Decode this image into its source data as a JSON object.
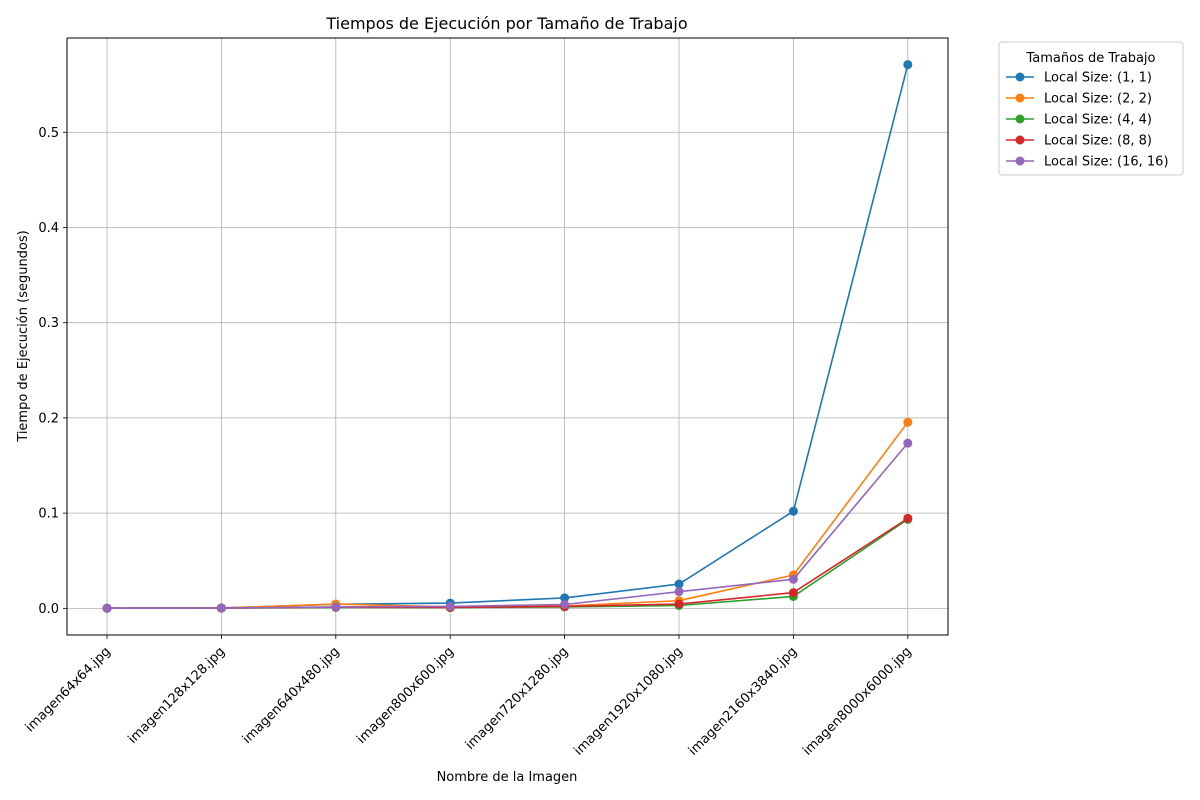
{
  "chart_data": {
    "type": "line",
    "title": "Tiempos de Ejecución por Tamaño de Trabajo",
    "xlabel": "Nombre de la Imagen",
    "ylabel": "Tiempo de Ejecución (segundos)",
    "categories": [
      "imagen64x64.jpg",
      "imagen128x128.jpg",
      "imagen640x480.jpg",
      "imagen800x600.jpg",
      "imagen720x1280.jpg",
      "imagen1920x1080.jpg",
      "imagen2160x3840.jpg",
      "imagen8000x6000.jpg"
    ],
    "ylim": [
      -0.028,
      0.599
    ],
    "yticks": [
      0.0,
      0.1,
      0.2,
      0.3,
      0.4,
      0.5
    ],
    "ytick_labels": [
      "0.0",
      "0.1",
      "0.2",
      "0.3",
      "0.4",
      "0.5"
    ],
    "grid": true,
    "legend_title": "Tamaños de Trabajo",
    "legend_position": "outside-top-right",
    "series": [
      {
        "name": "Local Size: (1, 1)",
        "color": "#1f77b4",
        "values": [
          0.0002,
          0.0005,
          0.0042,
          0.0055,
          0.011,
          0.0255,
          0.102,
          0.571
        ]
      },
      {
        "name": "Local Size: (2, 2)",
        "color": "#ff7f0e",
        "values": [
          0.0001,
          0.0003,
          0.0045,
          0.0015,
          0.0025,
          0.008,
          0.035,
          0.1955
        ]
      },
      {
        "name": "Local Size: (4, 4)",
        "color": "#2ca02c",
        "values": [
          0.0001,
          0.0002,
          0.001,
          0.0008,
          0.0015,
          0.003,
          0.0125,
          0.0935
        ]
      },
      {
        "name": "Local Size: (8, 8)",
        "color": "#d62728",
        "values": [
          0.0001,
          0.0002,
          0.0012,
          0.001,
          0.002,
          0.0045,
          0.0165,
          0.0945
        ]
      },
      {
        "name": "Local Size: (16, 16)",
        "color": "#9467bd",
        "values": [
          0.0001,
          0.0003,
          0.0015,
          0.002,
          0.004,
          0.0175,
          0.0305,
          0.1735
        ]
      }
    ]
  }
}
